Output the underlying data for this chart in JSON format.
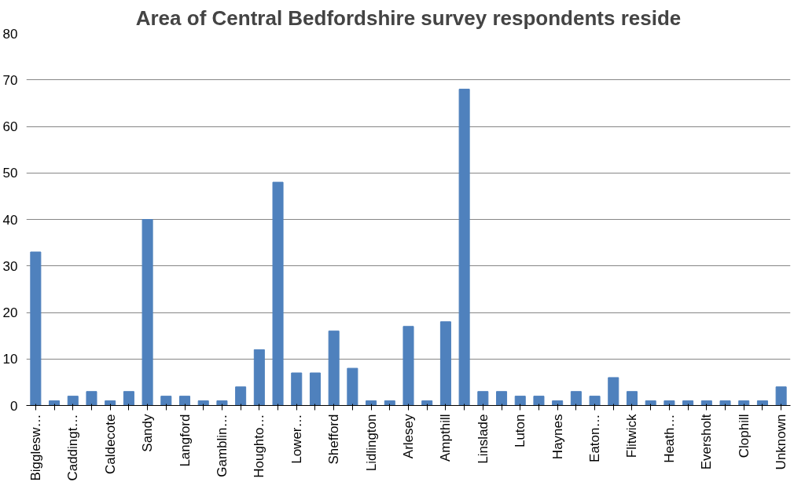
{
  "chart_data": {
    "type": "bar",
    "title": "Area of Central Bedfordshire survey respondents reside",
    "categories": [
      "Bigglesw…",
      null,
      "Caddingt…",
      null,
      "Caldecote",
      null,
      "Sandy",
      null,
      "Langford",
      null,
      "Gamblin…",
      null,
      "Houghto…",
      null,
      "Lower…",
      null,
      "Shefford",
      null,
      "Lidlington",
      null,
      "Arlesey",
      null,
      "Ampthill",
      null,
      "Linslade",
      null,
      "Luton",
      null,
      "Haynes",
      null,
      "Eaton…",
      null,
      "Flitwick",
      null,
      "Heath…",
      null,
      "Eversholt",
      null,
      "Clophill",
      null,
      "Unknown"
    ],
    "values": [
      33,
      1,
      2,
      3,
      1,
      3,
      40,
      2,
      2,
      1,
      1,
      4,
      12,
      48,
      7,
      7,
      16,
      8,
      1,
      1,
      17,
      1,
      18,
      68,
      3,
      3,
      2,
      2,
      1,
      3,
      2,
      6,
      3,
      1,
      1,
      1,
      1,
      1,
      1,
      1,
      4
    ],
    "color": "#4f81bd",
    "ylim": [
      0,
      80
    ],
    "yticks": [
      0,
      10,
      20,
      30,
      40,
      50,
      60,
      70,
      80
    ],
    "grid": "y"
  }
}
